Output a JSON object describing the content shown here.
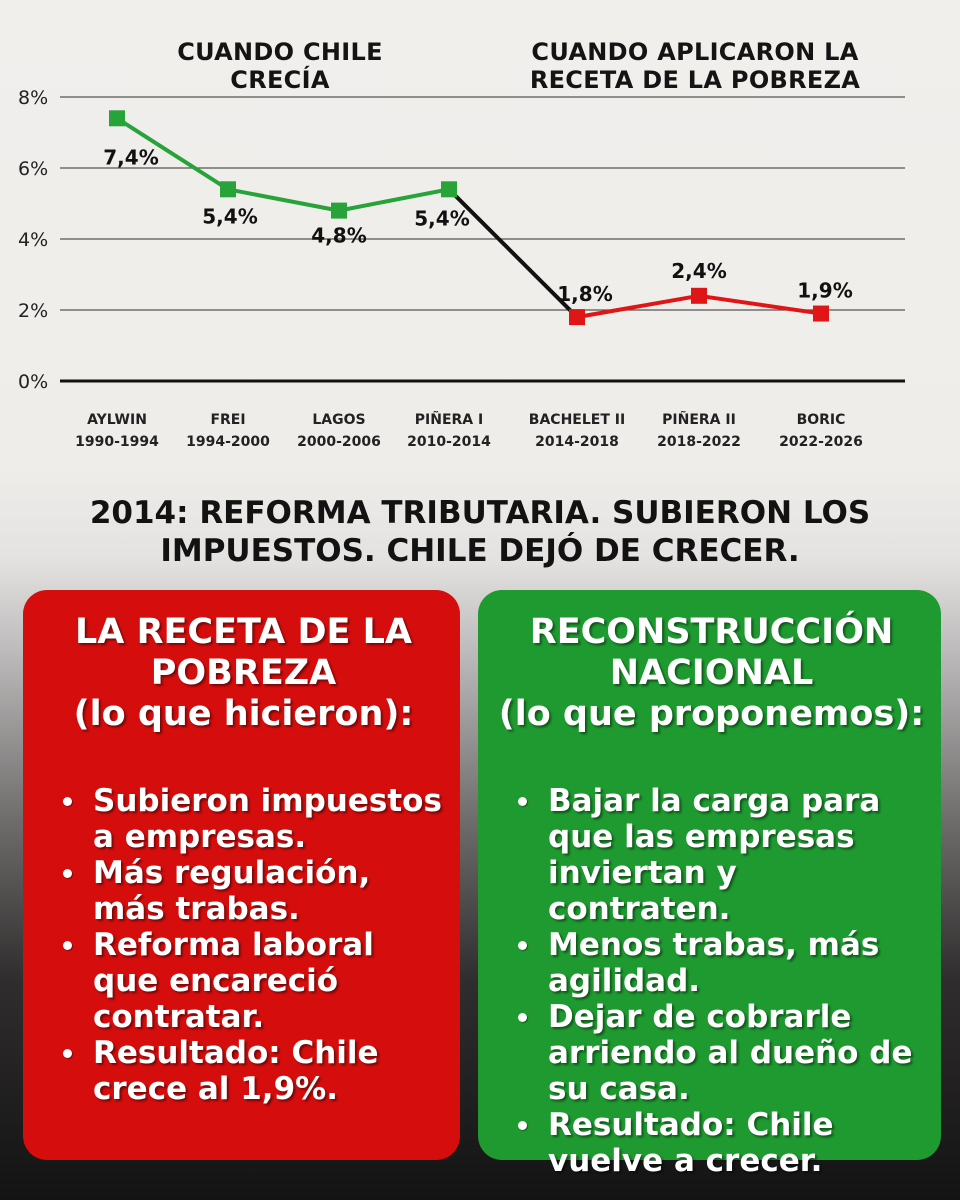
{
  "chart_data": {
    "type": "line",
    "categories": [
      {
        "name": "AYLWIN",
        "period": "1990-1994"
      },
      {
        "name": "FREI",
        "period": "1994-2000"
      },
      {
        "name": "LAGOS",
        "period": "2000-2006"
      },
      {
        "name": "PIÑERA I",
        "period": "2010-2014"
      },
      {
        "name": "BACHELET II",
        "period": "2014-2018"
      },
      {
        "name": "PIÑERA II",
        "period": "2018-2022"
      },
      {
        "name": "BORIC",
        "period": "2022-2026"
      }
    ],
    "values": [
      7.4,
      5.4,
      4.8,
      5.4,
      1.8,
      2.4,
      1.9
    ],
    "value_labels": [
      "7,4%",
      "5,4%",
      "4,8%",
      "5,4%",
      "1,8%",
      "2,4%",
      "1,9%"
    ],
    "segments": [
      {
        "name": "Cuando Chile crecía",
        "from": 0,
        "to": 3,
        "color": "#27a33a"
      },
      {
        "name": "Transición",
        "from": 3,
        "to": 4,
        "color": "#111111"
      },
      {
        "name": "Cuando aplicaron la receta de la pobreza",
        "from": 4,
        "to": 6,
        "color": "#e01616"
      }
    ],
    "ylim": [
      0,
      8
    ],
    "yticks": [
      0,
      2,
      4,
      6,
      8
    ],
    "ytick_labels": [
      "0%",
      "2%",
      "4%",
      "6%",
      "8%"
    ],
    "grid": true,
    "xlabel": "",
    "ylabel": "",
    "section_titles": {
      "left": [
        "CUANDO CHILE",
        "CRECÍA"
      ],
      "right": [
        "CUANDO APLICARON LA",
        "RECETA DE LA POBREZA"
      ]
    }
  },
  "headline": {
    "line1": "2014: REFORMA TRIBUTARIA. SUBIERON LOS",
    "line2": "IMPUESTOS. CHILE DEJÓ DE CRECER."
  },
  "left_panel": {
    "title_lines": [
      "LA RECETA DE LA",
      "POBREZA"
    ],
    "subtitle": "(lo que hicieron):",
    "color": "#d60d0d",
    "bullets": [
      "Subieron impuestos a empresas.",
      "Más regulación, más trabas.",
      "Reforma laboral que encareció contratar.",
      "Resultado: Chile crece al 1,9%."
    ]
  },
  "right_panel": {
    "title_lines": [
      "RECONSTRUCCIÓN",
      "NACIONAL"
    ],
    "subtitle": "(lo que proponemos):",
    "color": "#1e9a30",
    "bullets": [
      "Bajar la carga para que las empresas inviertan y contraten.",
      "Menos trabas, más agilidad.",
      "Dejar de cobrarle arriendo al dueño de su casa.",
      "Resultado: Chile vuelve a crecer."
    ]
  }
}
